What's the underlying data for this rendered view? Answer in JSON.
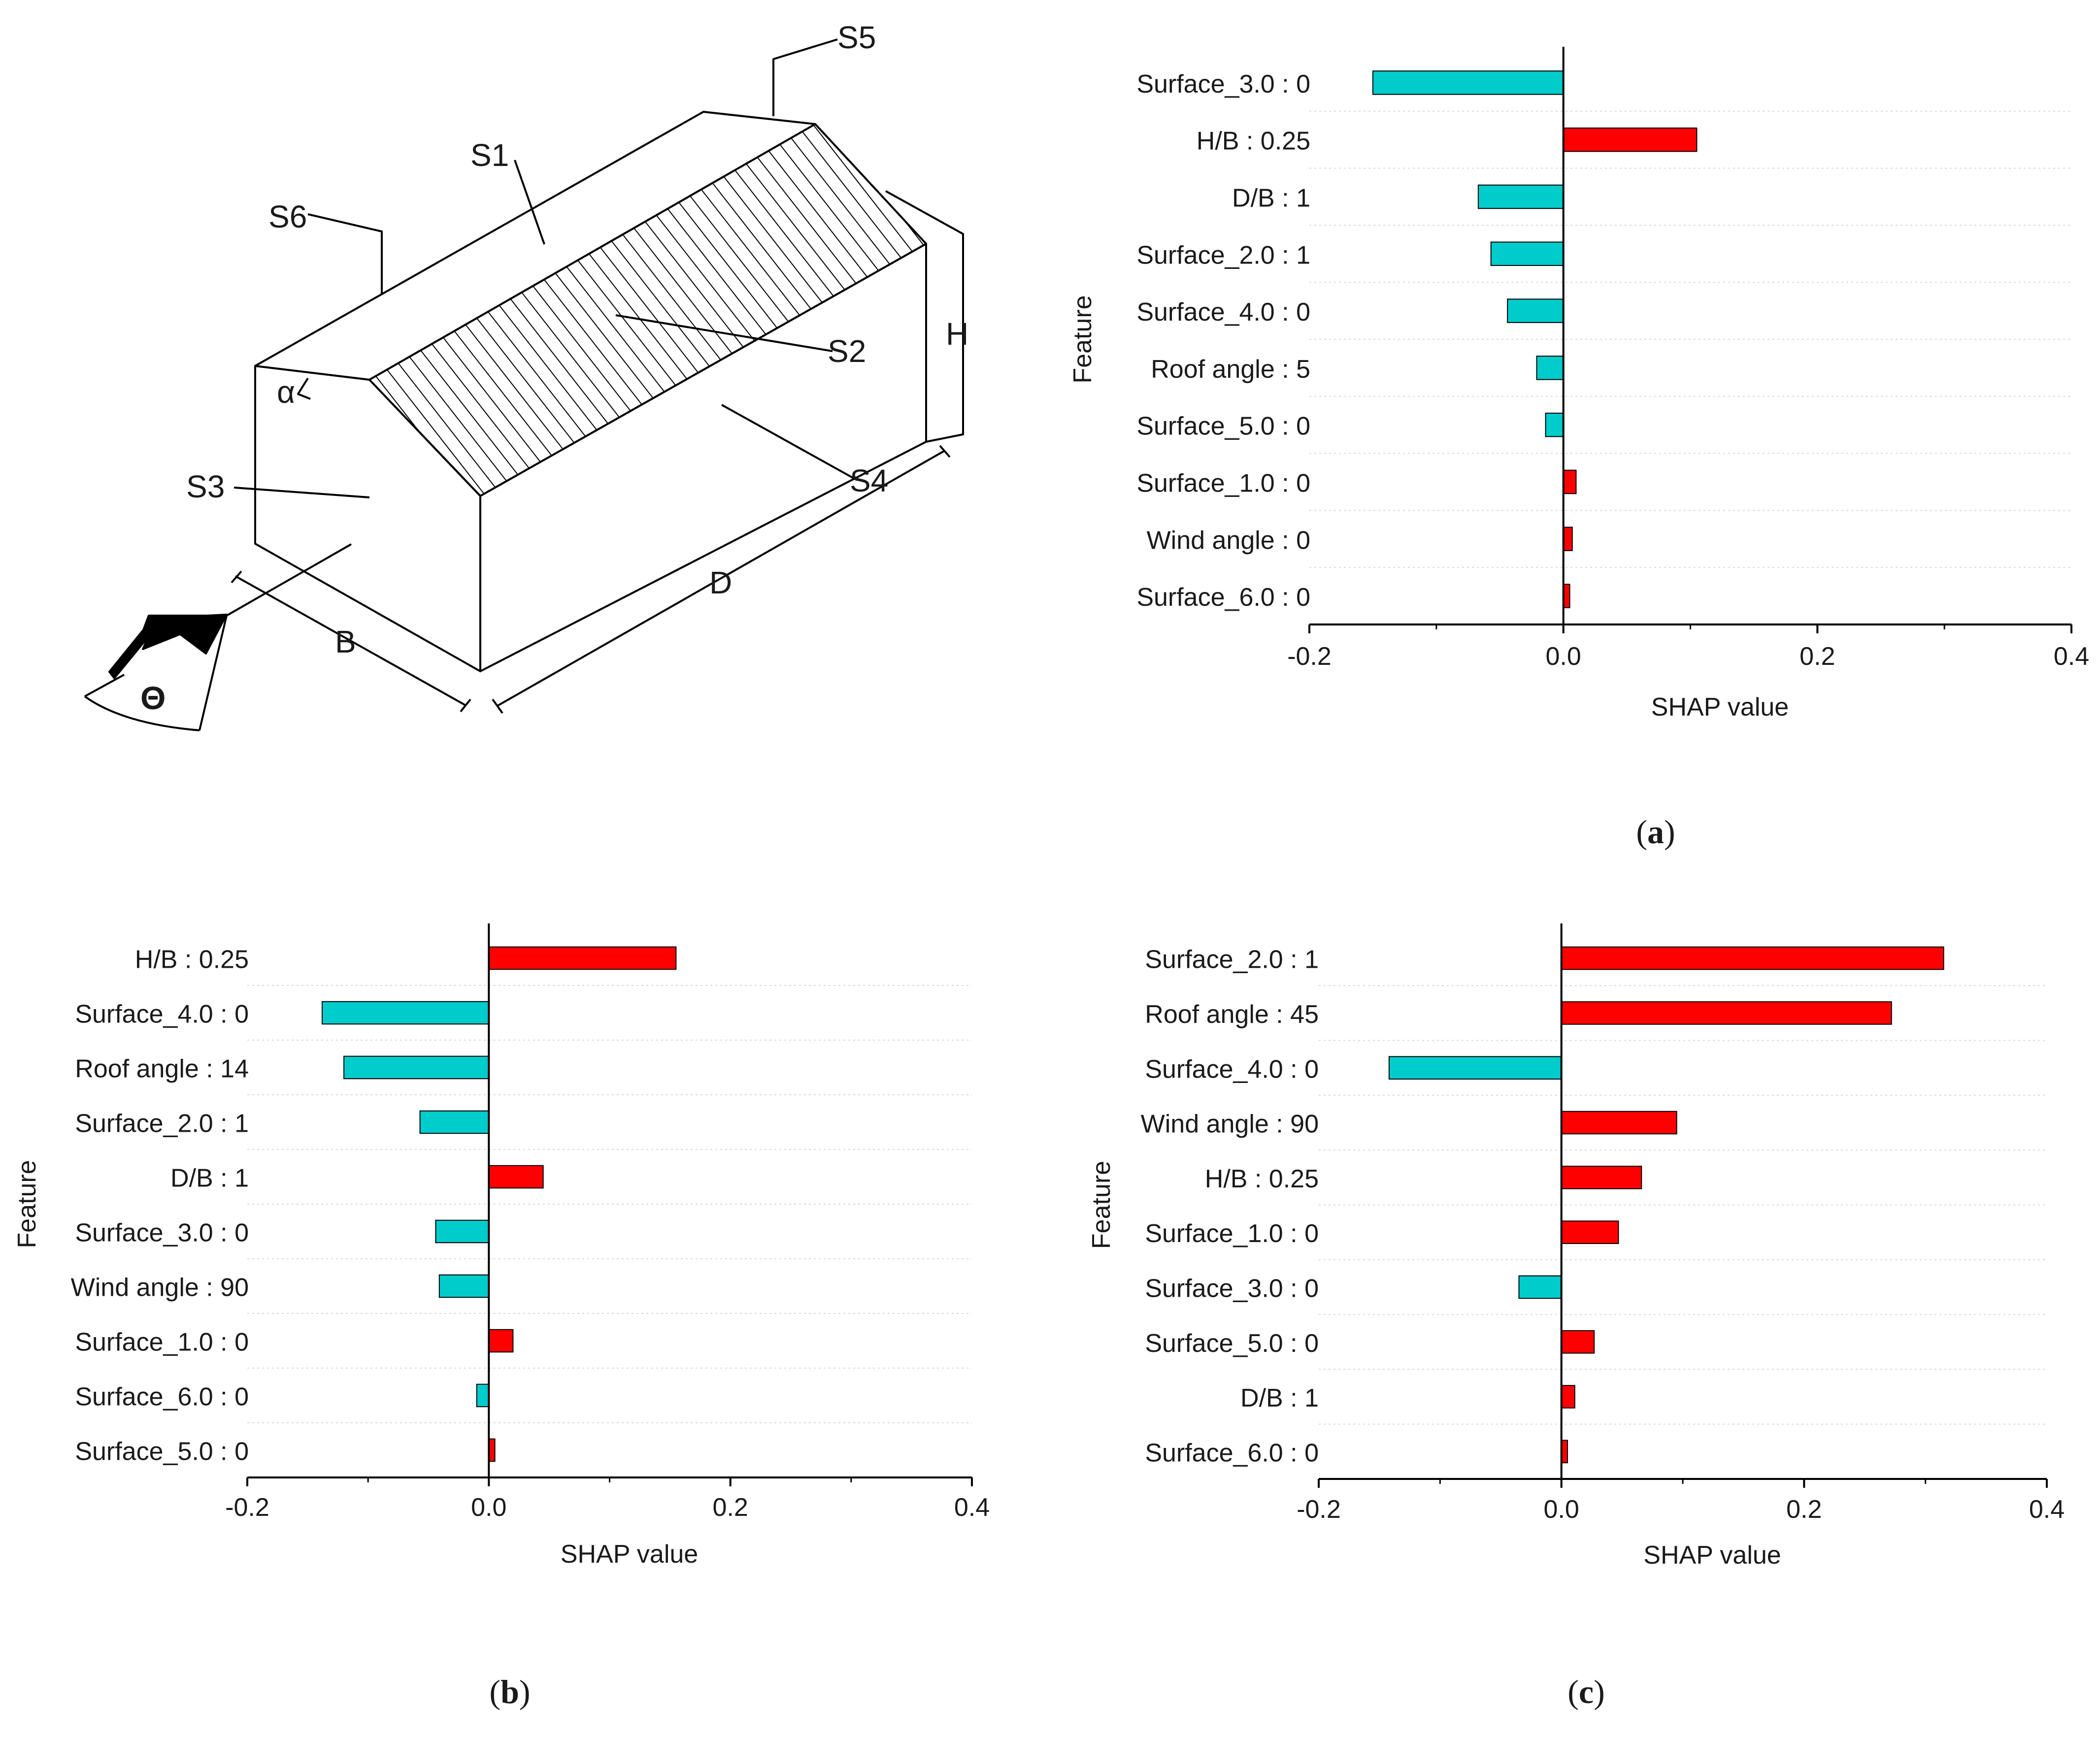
{
  "diagram": {
    "labels": {
      "s1": "S1",
      "s2": "S2",
      "s3": "S3",
      "s4": "S4",
      "s5": "S5",
      "s6": "S6",
      "h": "H",
      "d": "D",
      "b": "B",
      "alpha": "α",
      "theta": "Θ"
    }
  },
  "captions": {
    "a": [
      "(",
      "a",
      ")"
    ],
    "b": [
      "(",
      "b",
      ")"
    ],
    "c": [
      "(",
      "c",
      ")"
    ]
  },
  "colors": {
    "positive": "#ff0000",
    "negative": "#00cccc",
    "edge": "#000000",
    "grid": "#d9d9d9"
  },
  "chart_data": [
    {
      "id": "a",
      "type": "bar",
      "orientation": "horizontal",
      "title": "",
      "xlabel": "SHAP value",
      "ylabel": "Feature",
      "xlim": [
        -0.2,
        0.4
      ],
      "xticks": [
        -0.2,
        0.0,
        0.2,
        0.4
      ],
      "xtick_labels": [
        "-0.2",
        "0.0",
        "0.2",
        "0.4"
      ],
      "categories": [
        "Surface_3.0 : 0",
        "H/B : 0.25",
        "D/B : 1",
        "Surface_2.0 : 1",
        "Surface_4.0 : 0",
        "Roof angle : 5",
        "Surface_5.0 : 0",
        "Surface_1.0 : 0",
        "Wind angle : 0",
        "Surface_6.0 : 0"
      ],
      "values": [
        -0.15,
        0.105,
        -0.067,
        -0.057,
        -0.044,
        -0.021,
        -0.014,
        0.01,
        0.007,
        0.005
      ]
    },
    {
      "id": "b",
      "type": "bar",
      "orientation": "horizontal",
      "title": "",
      "xlabel": "SHAP value",
      "ylabel": "Feature",
      "xlim": [
        -0.2,
        0.4
      ],
      "xticks": [
        -0.2,
        0.0,
        0.2,
        0.4
      ],
      "xtick_labels": [
        "-0.2",
        "0.0",
        "0.2",
        "0.4"
      ],
      "categories": [
        "H/B : 0.25",
        "Surface_4.0 : 0",
        "Roof angle : 14",
        "Surface_2.0 : 1",
        "D/B : 1",
        "Surface_3.0 : 0",
        "Wind angle : 90",
        "Surface_1.0 : 0",
        "Surface_6.0 : 0",
        "Surface_5.0 : 0"
      ],
      "values": [
        0.155,
        -0.138,
        -0.12,
        -0.057,
        0.045,
        -0.044,
        -0.041,
        0.02,
        -0.01,
        0.005
      ]
    },
    {
      "id": "c",
      "type": "bar",
      "orientation": "horizontal",
      "title": "",
      "xlabel": "SHAP value",
      "ylabel": "Feature",
      "xlim": [
        -0.2,
        0.4
      ],
      "xticks": [
        -0.2,
        0.0,
        0.2,
        0.4
      ],
      "xtick_labels": [
        "-0.2",
        "0.0",
        "0.2",
        "0.4"
      ],
      "categories": [
        "Surface_2.0 : 1",
        "Roof angle : 45",
        "Surface_4.0 : 0",
        "Wind angle : 90",
        "H/B : 0.25",
        "Surface_1.0 : 0",
        "Surface_3.0 : 0",
        "Surface_5.0 : 0",
        "D/B : 1",
        "Surface_6.0 : 0"
      ],
      "values": [
        0.315,
        0.272,
        -0.142,
        0.095,
        0.066,
        0.047,
        -0.035,
        0.027,
        0.011,
        0.005
      ]
    }
  ]
}
